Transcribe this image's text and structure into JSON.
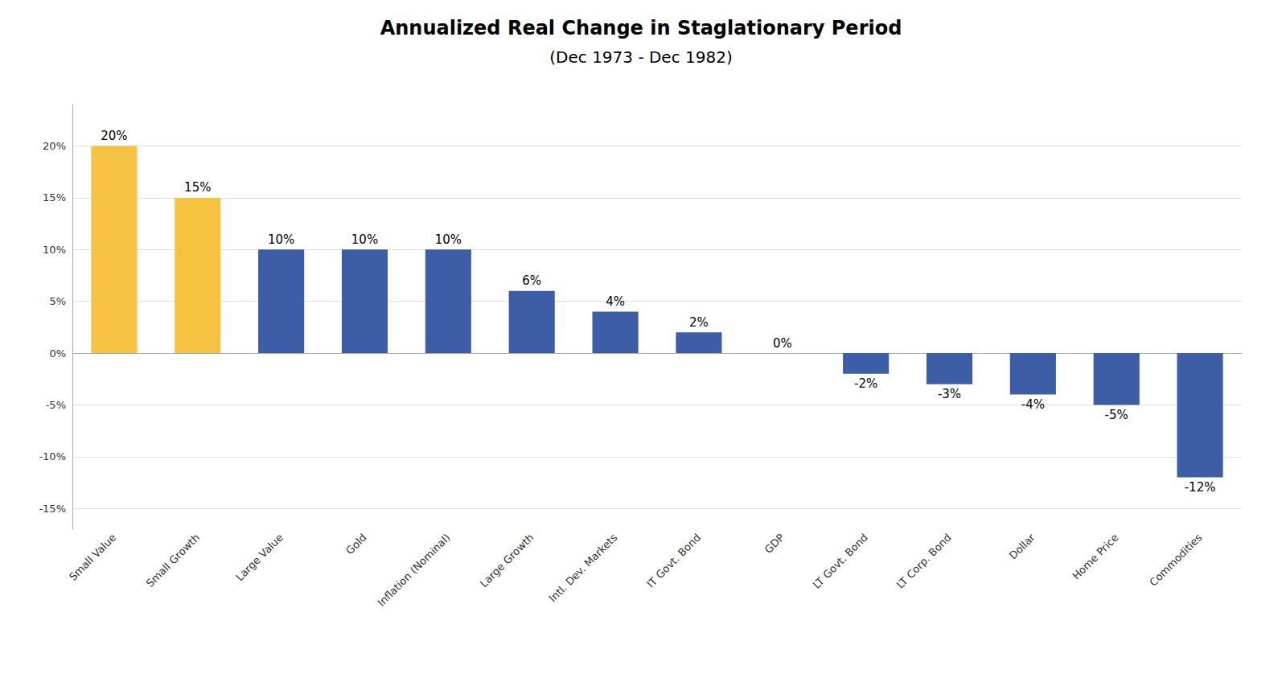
{
  "chart_data": {
    "type": "bar",
    "title": "Annualized Real Change in Staglationary Period",
    "subtitle": "(Dec 1973 - Dec 1982)",
    "categories": [
      "Small Value",
      "Small Growth",
      "Large Value",
      "Gold",
      "Inflation (Nominal)",
      "Large Growth",
      "Intl. Dev. Markets",
      "IT Govt. Bond",
      "GDP",
      "LT Govt. Bond",
      "LT Corp. Bond",
      "Dollar",
      "Home Price",
      "Commodities"
    ],
    "values": [
      20,
      15,
      10,
      10,
      10,
      6,
      4,
      2,
      0,
      -2,
      -3,
      -4,
      -5,
      -12
    ],
    "value_labels": [
      "20%",
      "15%",
      "10%",
      "10%",
      "10%",
      "6%",
      "4%",
      "2%",
      "0%",
      "-2%",
      "-3%",
      "-4%",
      "-5%",
      "-12%"
    ],
    "colors": [
      "#F5C242",
      "#F5C242",
      "#3D5DA7",
      "#3D5DA7",
      "#3D5DA7",
      "#3D5DA7",
      "#3D5DA7",
      "#3D5DA7",
      "#3D5DA7",
      "#3D5DA7",
      "#3D5DA7",
      "#3D5DA7",
      "#3D5DA7",
      "#3D5DA7"
    ],
    "ylim": [
      -17,
      24
    ],
    "yticks": [
      {
        "value": -15,
        "label": "-15%"
      },
      {
        "value": -10,
        "label": "-10%"
      },
      {
        "value": -5,
        "label": "-5%"
      },
      {
        "value": 0,
        "label": "0%"
      },
      {
        "value": 5,
        "label": "5%"
      },
      {
        "value": 10,
        "label": "10%"
      },
      {
        "value": 15,
        "label": "15%"
      },
      {
        "value": 20,
        "label": "20%"
      }
    ],
    "grid": true,
    "data_labels": true
  }
}
